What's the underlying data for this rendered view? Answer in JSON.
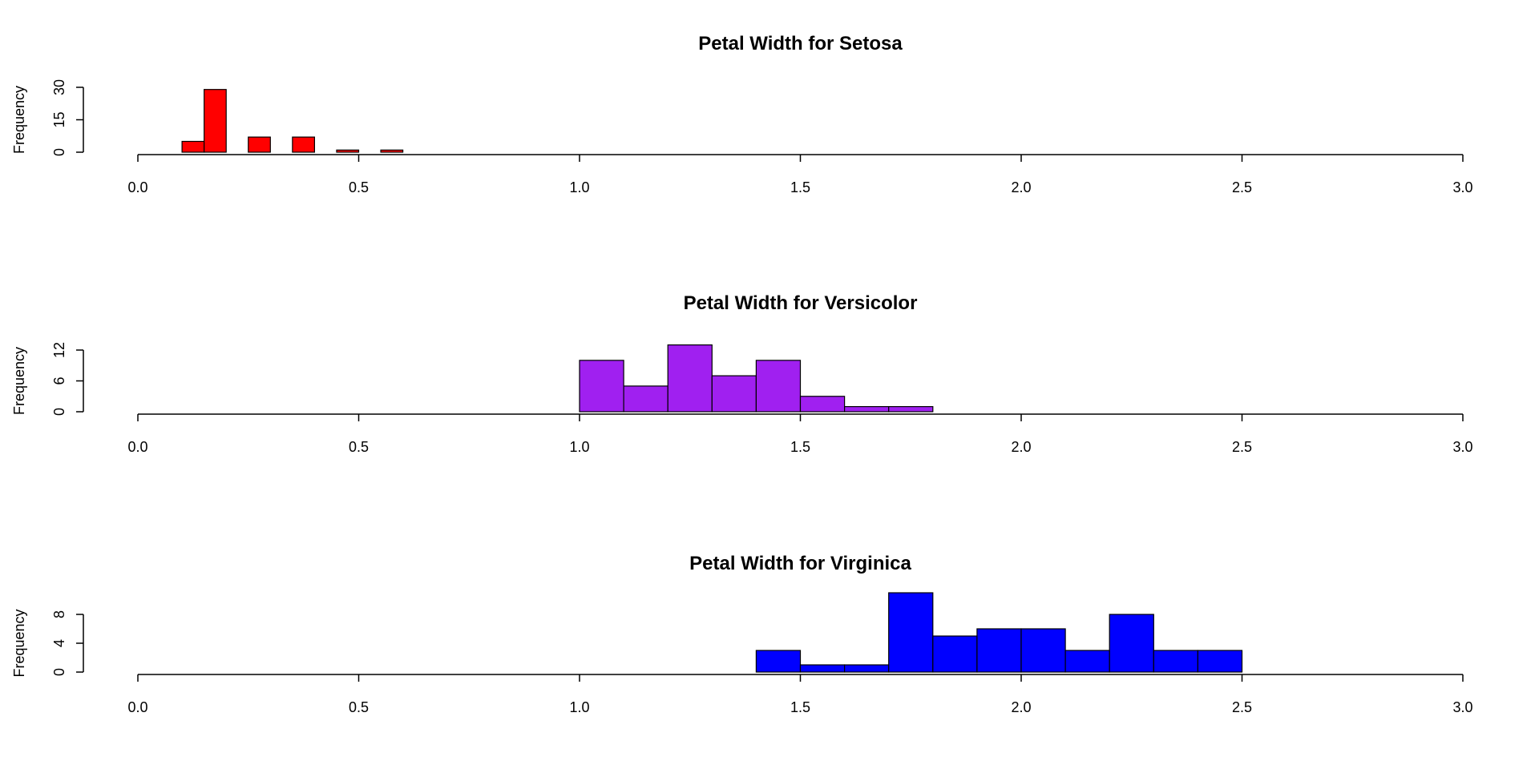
{
  "chart_data": [
    {
      "type": "bar",
      "title": "Petal Width for Setosa",
      "xlabel": "",
      "ylabel": "Frequency",
      "xlim": [
        0.0,
        3.0
      ],
      "xticks": [
        "0.0",
        "0.5",
        "1.0",
        "1.5",
        "2.0",
        "2.5",
        "3.0"
      ],
      "yticks": [
        "0",
        "15",
        "30"
      ],
      "ylim": [
        0,
        30
      ],
      "color": "#ff0000",
      "bin_edges": [
        0.1,
        0.15,
        0.2,
        0.25,
        0.3,
        0.35,
        0.4,
        0.45,
        0.5,
        0.55,
        0.6
      ],
      "values": [
        5,
        29,
        0,
        7,
        0,
        7,
        0,
        1,
        0,
        1
      ]
    },
    {
      "type": "bar",
      "title": "Petal Width for Versicolor",
      "xlabel": "",
      "ylabel": "Frequency",
      "xlim": [
        0.0,
        3.0
      ],
      "xticks": [
        "0.0",
        "0.5",
        "1.0",
        "1.5",
        "2.0",
        "2.5",
        "3.0"
      ],
      "yticks": [
        "0",
        "6",
        "12"
      ],
      "ylim": [
        0,
        12
      ],
      "color": "#a020f0",
      "bin_edges": [
        1.0,
        1.1,
        1.2,
        1.3,
        1.4,
        1.5,
        1.6,
        1.7,
        1.8
      ],
      "values": [
        10,
        5,
        13,
        7,
        10,
        3,
        1,
        1
      ]
    },
    {
      "type": "bar",
      "title": "Petal Width for Virginica",
      "xlabel": "",
      "ylabel": "Frequency",
      "xlim": [
        0.0,
        3.0
      ],
      "xticks": [
        "0.0",
        "0.5",
        "1.0",
        "1.5",
        "2.0",
        "2.5",
        "3.0"
      ],
      "yticks": [
        "0",
        "4",
        "8"
      ],
      "ylim": [
        0,
        8
      ],
      "color": "#0000ff",
      "bin_edges": [
        1.4,
        1.5,
        1.6,
        1.7,
        1.8,
        1.9,
        2.0,
        2.1,
        2.2,
        2.3,
        2.4,
        2.5
      ],
      "values": [
        3,
        1,
        1,
        11,
        5,
        6,
        6,
        3,
        8,
        3,
        3
      ]
    }
  ]
}
